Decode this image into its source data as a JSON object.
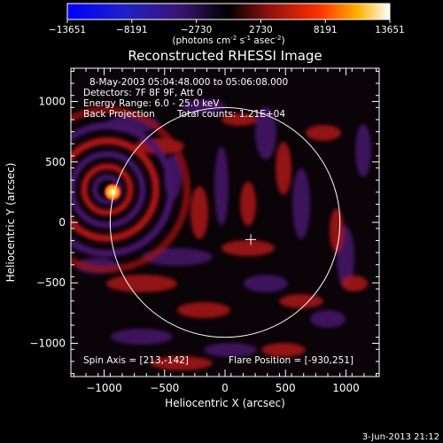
{
  "chart_data": {
    "type": "heatmap",
    "title": "Reconstructed RHESSI Image",
    "xlabel": "Heliocentric X (arcsec)",
    "ylabel": "Heliocentric Y (arcsec)",
    "xlim": [
      -1275,
      1275
    ],
    "ylim": [
      -1275,
      1275
    ],
    "x_ticks": [
      -1000,
      -500,
      0,
      500,
      1000
    ],
    "y_ticks": [
      -1000,
      -500,
      0,
      500,
      1000
    ],
    "colorbar": {
      "ticks": [
        "-13651",
        "-8191",
        "-2730",
        "2730",
        "8191",
        "13651"
      ],
      "range": [
        -13651,
        13651
      ],
      "unit_main": "(photons cm",
      "unit_exp1": "-2",
      "unit_mid": " s",
      "unit_exp2": "-1",
      "unit_end": " asec",
      "unit_exp3": "-2",
      "unit_close": ")"
    },
    "annotations": {
      "line1": "8-May-2003 05:04:48.000 to 05:06:08.000",
      "line2": "Detectors: 7F 8F 9F, Att 0",
      "line3": "Energy Range: 6.0 - 25.0 keV",
      "line4a": "Back Projection",
      "line4b": "Total counts: 1.21E+04",
      "spin_axis": "Spin Axis = [213,-142]",
      "flare_position": "Flare Position = [-930,251]"
    },
    "solar_limb": {
      "center": [
        0,
        0
      ],
      "radius": 950
    },
    "center_marker": [
      213,
      -142
    ],
    "flare_source": [
      -930,
      251
    ],
    "colors": {
      "background": "#000000",
      "flare_core": "#ffffa0",
      "positive": "#c81414",
      "negative": "#50147a"
    }
  },
  "footer": {
    "timestamp": "3-Jun-2013 21:12"
  }
}
